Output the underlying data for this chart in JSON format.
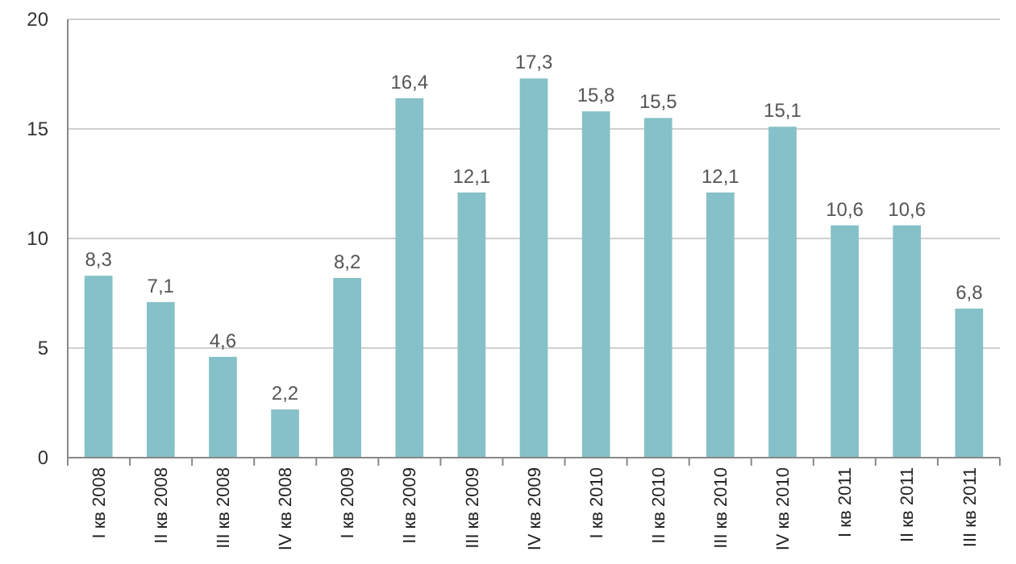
{
  "chart_data": {
    "type": "bar",
    "categories": [
      "I кв 2008",
      "II кв 2008",
      "III кв 2008",
      "IV кв 2008",
      "I кв 2009",
      "II кв 2009",
      "III кв 2009",
      "IV кв 2009",
      "I кв 2010",
      "II кв 2010",
      "III кв 2010",
      "IV кв 2010",
      "I кв 2011",
      "II кв 2011",
      "III кв 2011"
    ],
    "values": [
      8.3,
      7.1,
      4.6,
      2.2,
      8.2,
      16.4,
      12.1,
      17.3,
      15.8,
      15.5,
      12.1,
      15.1,
      10.6,
      10.6,
      6.8
    ],
    "value_labels": [
      "8,3",
      "7,1",
      "4,6",
      "2,2",
      "8,2",
      "16,4",
      "12,1",
      "17,3",
      "15,8",
      "15,5",
      "12,1",
      "15,1",
      "10,6",
      "10,6",
      "6,8"
    ],
    "color": "#86c0c8",
    "ylim": [
      0,
      20
    ],
    "yticks": [
      0,
      5,
      10,
      15,
      20
    ],
    "grid": "y"
  }
}
